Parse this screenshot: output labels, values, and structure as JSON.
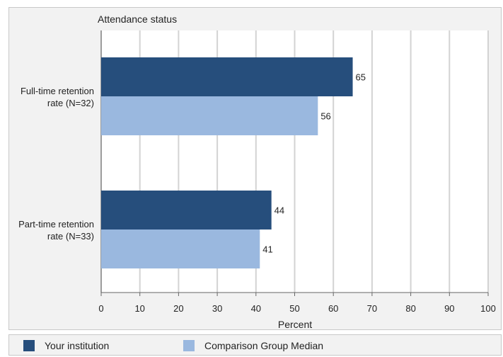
{
  "chart_data": {
    "type": "bar",
    "orientation": "horizontal",
    "title": "Attendance status",
    "xlabel": "Percent",
    "ylabel": "",
    "xlim": [
      0,
      100
    ],
    "xticks": [
      0,
      10,
      20,
      30,
      40,
      50,
      60,
      70,
      80,
      90,
      100
    ],
    "grid": true,
    "legend_position": "bottom",
    "categories": [
      [
        "Full-time retention",
        "rate (N=32)"
      ],
      [
        "Part-time retention",
        "rate (N=33)"
      ]
    ],
    "series": [
      {
        "name": "Your institution",
        "color": "#264e7c",
        "values": [
          65,
          44
        ]
      },
      {
        "name": "Comparison Group Median",
        "color": "#9ab8df",
        "values": [
          56,
          41
        ]
      }
    ]
  }
}
